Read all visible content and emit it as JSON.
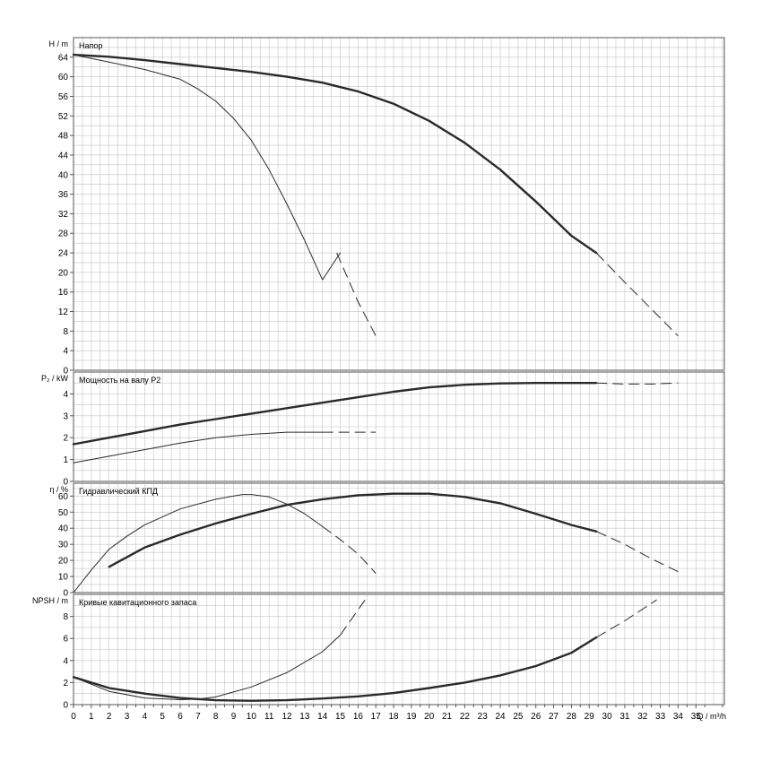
{
  "colors": {
    "background": "#ffffff",
    "grid": "#c4c4c4",
    "frame": "#555555",
    "curve": "#2a2a2a"
  },
  "x_axis": {
    "label": "Q / m³/h",
    "ticks": [
      "0",
      "1",
      "2",
      "3",
      "4",
      "5",
      "6",
      "7",
      "8",
      "9",
      "10",
      "11",
      "12",
      "13",
      "14",
      "15",
      "16",
      "17",
      "18",
      "19",
      "20",
      "21",
      "22",
      "23",
      "24",
      "25",
      "26",
      "27",
      "28",
      "29",
      "30",
      "31",
      "32",
      "33",
      "34",
      "35"
    ]
  },
  "chart_data": [
    {
      "type": "line",
      "panel": "head",
      "title": "Напор",
      "ylabel": "H / m",
      "ylim": [
        0,
        68
      ],
      "y_ticks": [
        "0",
        "4",
        "8",
        "12",
        "16",
        "20",
        "24",
        "28",
        "32",
        "36",
        "40",
        "44",
        "48",
        "52",
        "56",
        "60",
        "64"
      ],
      "series": [
        {
          "style": "thick",
          "solid": {
            "x": [
              0,
              2,
              4,
              6,
              8,
              10,
              12,
              14,
              16,
              18,
              20,
              22,
              24,
              26,
              28,
              29.4
            ],
            "y": [
              64.5,
              64.1,
              63.4,
              62.6,
              61.8,
              61,
              60,
              58.8,
              57,
              54.5,
              51,
              46.5,
              41,
              34.5,
              27.5,
              24
            ]
          },
          "dashed": {
            "x": [
              29.4,
              31,
              32.5,
              34
            ],
            "y": [
              24,
              18,
              12.5,
              7
            ]
          }
        },
        {
          "style": "thin",
          "solid": {
            "x": [
              0,
              2,
              4,
              6,
              7,
              8,
              9,
              10,
              11,
              12,
              13,
              14,
              15
            ],
            "y": [
              64.5,
              63,
              61.5,
              59.5,
              57.5,
              55,
              51.5,
              47,
              41,
              34,
              26.5,
              18.5,
              24
            ]
          },
          "dashed": {
            "x": [
              14.8,
              16,
              17
            ],
            "y": [
              24,
              14,
              7
            ]
          }
        }
      ]
    },
    {
      "type": "line",
      "panel": "power",
      "title": "Мощность на валу P2",
      "ylabel": "P₂ / kW",
      "ylim": [
        0,
        5
      ],
      "y_ticks": [
        "0",
        "1",
        "2",
        "3",
        "4"
      ],
      "series": [
        {
          "style": "thick",
          "solid": {
            "x": [
              0,
              2,
              4,
              6,
              8,
              10,
              12,
              14,
              16,
              18,
              20,
              22,
              24,
              26,
              28,
              29.4
            ],
            "y": [
              1.7,
              2,
              2.3,
              2.6,
              2.85,
              3.1,
              3.35,
              3.6,
              3.85,
              4.1,
              4.3,
              4.42,
              4.48,
              4.5,
              4.5,
              4.5
            ]
          },
          "dashed": {
            "x": [
              29.4,
              31,
              32.5,
              34
            ],
            "y": [
              4.5,
              4.45,
              4.45,
              4.5
            ]
          }
        },
        {
          "style": "thin",
          "solid": {
            "x": [
              0,
              2,
              4,
              6,
              8,
              10,
              12,
              14
            ],
            "y": [
              0.85,
              1.15,
              1.45,
              1.75,
              2,
              2.15,
              2.25,
              2.25
            ]
          },
          "dashed": {
            "x": [
              14,
              15.5,
              17
            ],
            "y": [
              2.25,
              2.25,
              2.25
            ]
          }
        }
      ]
    },
    {
      "type": "line",
      "panel": "efficiency",
      "title": "Гидравлический КПД",
      "ylabel": "η / %",
      "ylim": [
        0,
        68
      ],
      "y_ticks": [
        "0",
        "10",
        "20",
        "30",
        "40",
        "50",
        "60"
      ],
      "series": [
        {
          "style": "thick",
          "solid": {
            "x": [
              2,
              4,
              6,
              8,
              10,
              12,
              14,
              16,
              18,
              20,
              22,
              24,
              26,
              28,
              29.4
            ],
            "y": [
              16,
              28,
              36,
              43,
              49,
              54.5,
              58,
              60.5,
              61.5,
              61.5,
              59.5,
              55.5,
              49,
              42,
              38
            ]
          },
          "dashed": {
            "x": [
              29.4,
              31,
              32.5,
              34
            ],
            "y": [
              38,
              30,
              21,
              13
            ]
          }
        },
        {
          "style": "thin",
          "solid": {
            "x": [
              0,
              1,
              2,
              3,
              4,
              6,
              8,
              9.5,
              10,
              11,
              12,
              13,
              14
            ],
            "y": [
              0,
              14,
              27,
              35,
              42,
              52,
              58,
              61,
              61,
              59.5,
              55,
              49,
              41
            ]
          },
          "dashed": {
            "x": [
              14,
              15,
              16,
              17
            ],
            "y": [
              41,
              33,
              24,
              12
            ]
          }
        }
      ]
    },
    {
      "type": "line",
      "panel": "npsh",
      "title": "Кривые кавитационного запаса",
      "ylabel": "NPSH / m",
      "ylim": [
        0,
        10
      ],
      "y_ticks": [
        "0",
        "2",
        "4",
        "6",
        "8"
      ],
      "series": [
        {
          "style": "thick",
          "solid": {
            "x": [
              0,
              2,
              4,
              6,
              8,
              10,
              12,
              14,
              16,
              18,
              20,
              22,
              24,
              26,
              28,
              29.4
            ],
            "y": [
              2.5,
              1.5,
              1,
              0.6,
              0.4,
              0.35,
              0.4,
              0.55,
              0.75,
              1.05,
              1.5,
              2,
              2.65,
              3.5,
              4.7,
              6.1
            ]
          },
          "dashed": {
            "x": [
              29.4,
              31,
              32.8
            ],
            "y": [
              6.1,
              7.6,
              9.5
            ]
          }
        },
        {
          "style": "thin",
          "solid": {
            "x": [
              0,
              2,
              4,
              6,
              7,
              8,
              10,
              12,
              14,
              15
            ],
            "y": [
              2.5,
              1.2,
              0.6,
              0.45,
              0.5,
              0.7,
              1.6,
              2.9,
              4.8,
              6.3
            ]
          },
          "dashed": {
            "x": [
              15,
              16.4
            ],
            "y": [
              6.3,
              9.5
            ]
          }
        }
      ]
    }
  ]
}
